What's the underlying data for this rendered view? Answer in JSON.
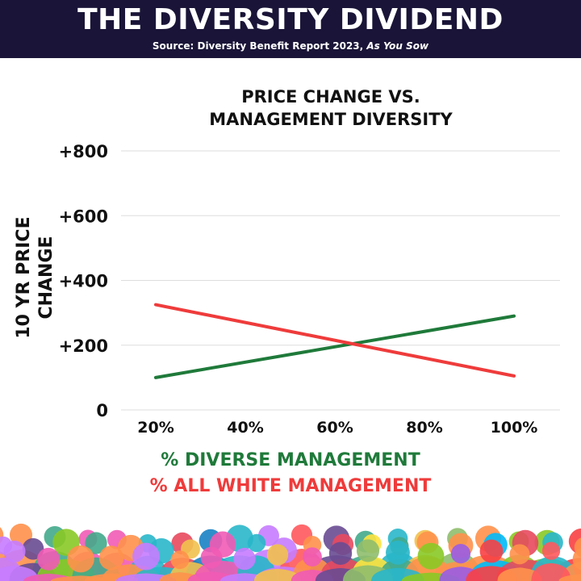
{
  "header": {
    "title": "THE DIVERSITY DIVIDEND",
    "source_prefix": "Source: Diversity Benefit Report 2023, ",
    "source_italic": "As You Sow"
  },
  "colors": {
    "header_bg": "#1a1538",
    "diverse": "#1f7a3a",
    "white_mgmt": "#ef3b3b",
    "grid": "#dddddd"
  },
  "chart_data": {
    "type": "line",
    "title_line1": "PRICE CHANGE VS.",
    "title_line2": "MANAGEMENT DIVERSITY",
    "ylabel": "10 YR PRICE CHANGE",
    "ylim": [
      0,
      800
    ],
    "y_ticks": [
      0,
      200,
      400,
      600,
      800
    ],
    "y_tick_labels": [
      "0",
      "+200",
      "+400",
      "+600",
      "+800"
    ],
    "x": [
      20,
      40,
      60,
      80,
      100
    ],
    "x_tick_labels": [
      "20%",
      "40%",
      "60%",
      "80%",
      "100%"
    ],
    "grid": true,
    "series": [
      {
        "name": "% DIVERSE MANAGEMENT",
        "color": "#1f7a3a",
        "points": [
          [
            20,
            100
          ],
          [
            100,
            290
          ]
        ]
      },
      {
        "name": "% ALL WHITE MANAGEMENT",
        "color": "#ef3b3b",
        "points": [
          [
            20,
            325
          ],
          [
            100,
            105
          ]
        ]
      }
    ],
    "legend_position": "bottom"
  }
}
